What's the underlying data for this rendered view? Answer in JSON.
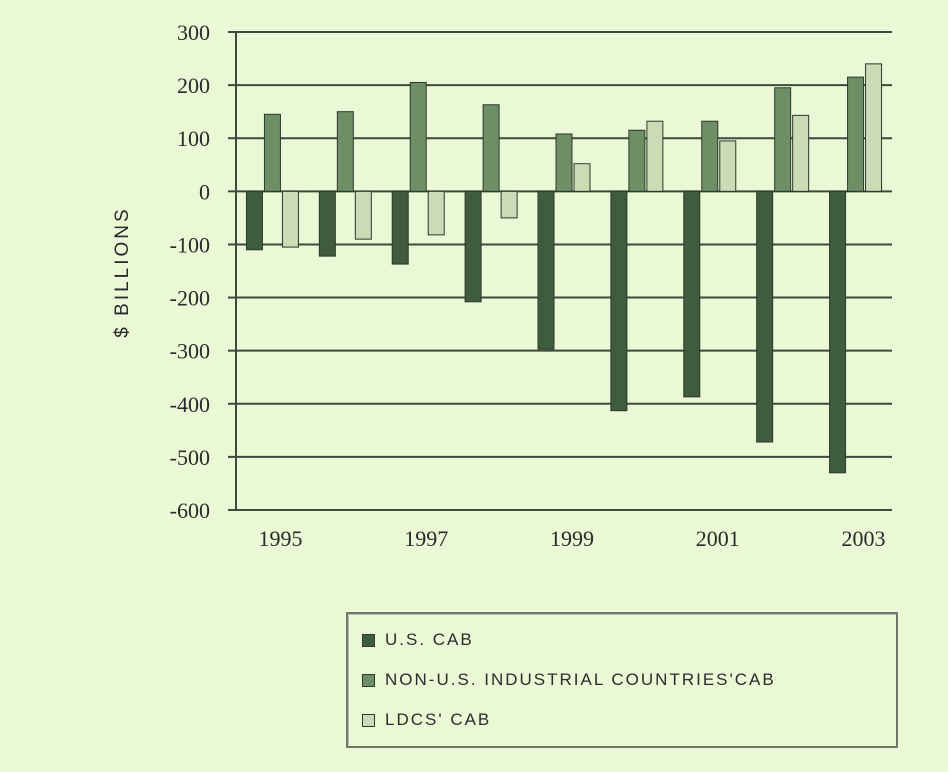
{
  "chart_data": {
    "type": "bar",
    "title": "",
    "xlabel": "",
    "ylabel": "$ BILLIONS",
    "ylim": [
      -600,
      300
    ],
    "yticks": [
      "300",
      "200",
      "100",
      "0",
      "-100",
      "-200",
      "-300",
      "-400",
      "-500",
      "-600"
    ],
    "ytick_values": [
      300,
      200,
      100,
      0,
      -100,
      -200,
      -300,
      -400,
      -500,
      -600
    ],
    "categories": [
      "1995",
      "1996",
      "1997",
      "1998",
      "1999",
      "2000",
      "2001",
      "2002",
      "2003"
    ],
    "xtick_labels": [
      "1995",
      "1997",
      "1999",
      "2001",
      "2003"
    ],
    "grid": "horizontal",
    "legend_position": "bottom-right",
    "series": [
      {
        "name": "U.S. CAB",
        "color": "#3f5d3d",
        "values": [
          -110,
          -122,
          -137,
          -208,
          -297,
          -413,
          -387,
          -472,
          -530
        ]
      },
      {
        "name": "NON-U.S. INDUSTRIAL COUNTRIES'CAB",
        "color": "#6e8e66",
        "values": [
          145,
          150,
          205,
          163,
          108,
          115,
          132,
          195,
          215
        ]
      },
      {
        "name": "LDCS' CAB",
        "color": "#c9dcb6",
        "values": [
          -105,
          -90,
          -82,
          -50,
          52,
          132,
          95,
          143,
          240
        ]
      }
    ]
  }
}
